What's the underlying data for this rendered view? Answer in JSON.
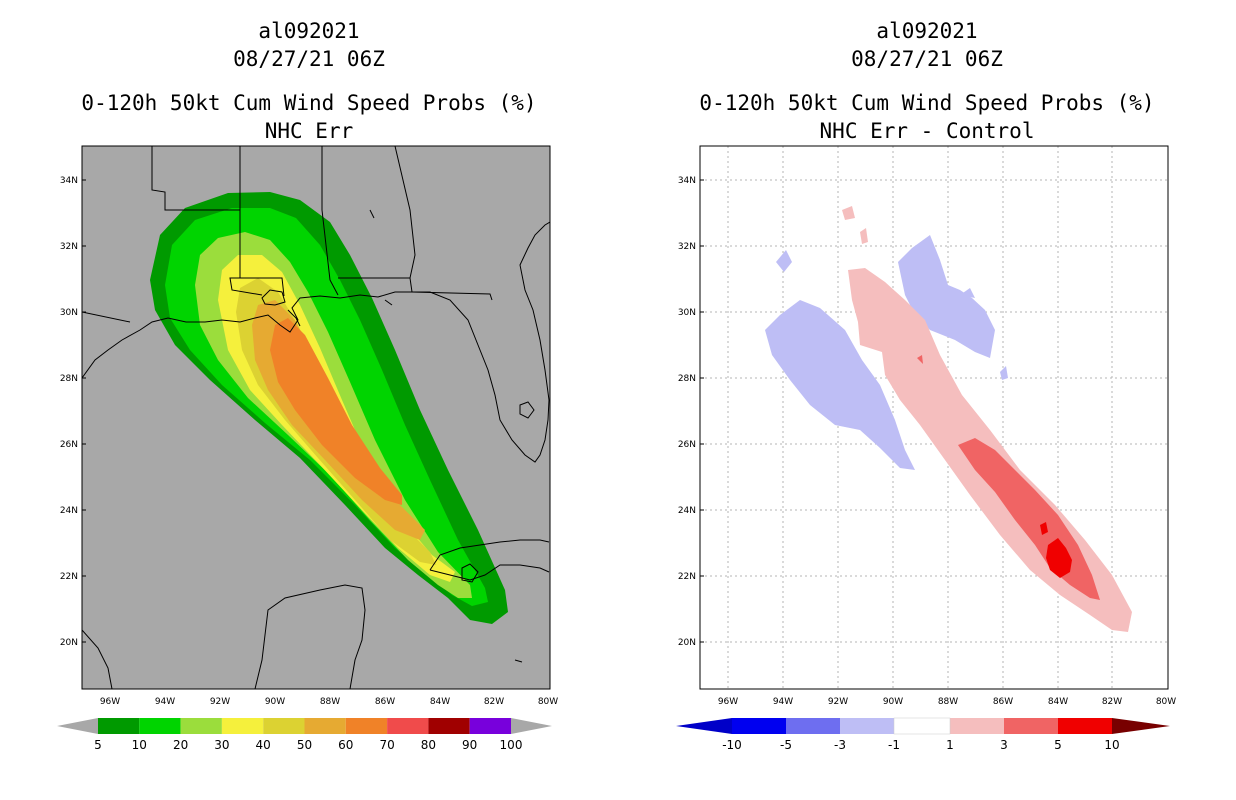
{
  "left_panel": {
    "title_lines": [
      "al092021",
      "08/27/21 06Z",
      "0-120h 50kt Cum Wind Speed Probs (%)",
      "NHC Err"
    ],
    "lat_ticks": [
      "34N",
      "32N",
      "30N",
      "28N",
      "26N",
      "24N",
      "22N",
      "20N"
    ],
    "lon_ticks": [
      "96W",
      "94W",
      "92W",
      "90W",
      "88W",
      "86W",
      "84W",
      "82W",
      "80W"
    ],
    "colorbar": {
      "labels": [
        "5",
        "10",
        "20",
        "30",
        "40",
        "50",
        "60",
        "70",
        "80",
        "90",
        "100"
      ],
      "colors": [
        "#009a00",
        "#00d400",
        "#9bdd3c",
        "#f5f03c",
        "#dcd232",
        "#e6aa32",
        "#f08228",
        "#f04b4b",
        "#a00000",
        "#7800dc"
      ]
    }
  },
  "right_panel": {
    "title_lines": [
      "al092021",
      "08/27/21 06Z",
      "0-120h 50kt Cum Wind Speed Probs (%)",
      "NHC Err - Control"
    ],
    "lat_ticks": [
      "34N",
      "32N",
      "30N",
      "28N",
      "26N",
      "24N",
      "22N",
      "20N"
    ],
    "lon_ticks": [
      "96W",
      "94W",
      "92W",
      "90W",
      "88W",
      "86W",
      "84W",
      "82W",
      "80W"
    ],
    "colorbar": {
      "labels": [
        "-10",
        "-5",
        "-3",
        "-1",
        "1",
        "3",
        "5",
        "10"
      ],
      "colors": [
        "#0000c8",
        "#0000f0",
        "#6e6ef0",
        "#bebef5",
        "#ffffff",
        "#f5bebe",
        "#f06464",
        "#f00000",
        "#b40000",
        "#780000"
      ]
    }
  }
}
